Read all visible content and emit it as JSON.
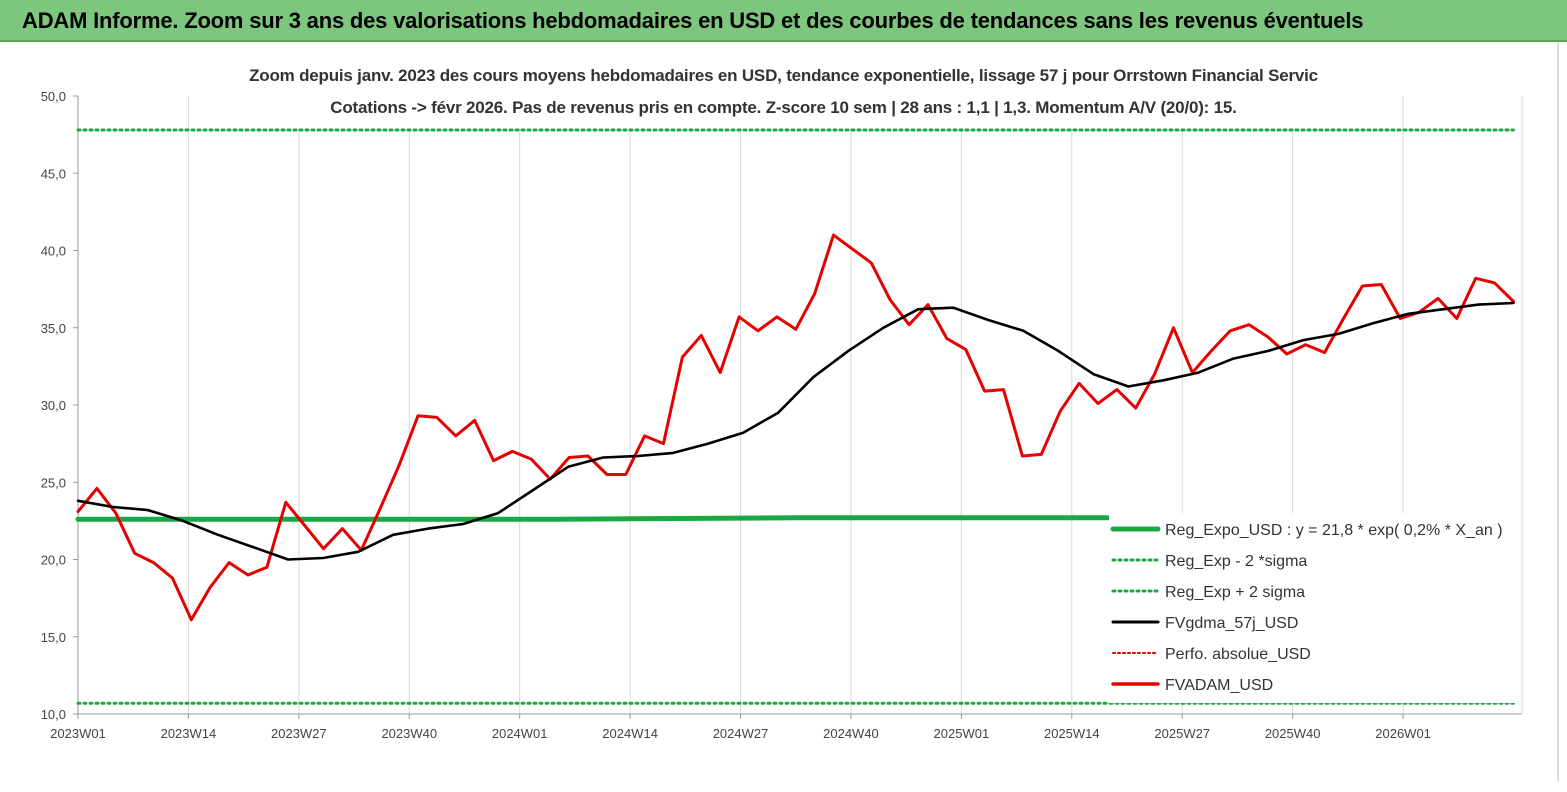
{
  "header": {
    "title": "ADAM Informe. Zoom sur 3 ans des valorisations hebdomadaires en USD et des courbes de tendances sans les revenus éventuels"
  },
  "colors": {
    "header_bg": "#7dc67d",
    "reg_expo": "#1aa844",
    "sigma_bands": "#1aa844",
    "fvgdma": "#000000",
    "perfo": "#e00000",
    "fvadam": "#e60000",
    "grid": "#d9d9d9"
  },
  "chart_data": {
    "type": "line",
    "title_line1": "Zoom depuis janv. 2023 des cours moyens hebdomadaires en USD, tendance exponentielle, lissage 57 j pour Orrstown Financial Servic",
    "title_line2": "Cotations -> févr 2026.  Pas de revenus pris en compte. Z-score 10 sem  | 28 ans : 1,1  | 1,3. Momentum A/V (20/0): 15.",
    "xlabel": "",
    "ylabel": "",
    "ylim": [
      10,
      50
    ],
    "yticks": [
      "10,0",
      "15,0",
      "20,0",
      "25,0",
      "30,0",
      "35,0",
      "40,0",
      "45,0",
      "50,0"
    ],
    "xticks": [
      "2023W01",
      "2023W14",
      "2023W27",
      "2023W40",
      "2024W01",
      "2024W14",
      "2024W27",
      "2024W40",
      "2025W01",
      "2025W14",
      "2025W27",
      "2025W40",
      "2026W01"
    ],
    "grid": "vertical",
    "legend_position": "bottom-right",
    "n_weeks": 170,
    "series": [
      {
        "name": "Reg_Expo_USD : y = 21,8 * exp( 0,2% *  X_an )",
        "style": "solid-thick",
        "values": [
          22.6,
          22.6,
          22.6,
          22.7,
          22.7,
          22.7,
          22.8
        ]
      },
      {
        "name": "Reg_Exp - 2 *sigma",
        "style": "dotted",
        "values": [
          10.7,
          10.7,
          10.7,
          10.7,
          10.7,
          10.7,
          10.7
        ]
      },
      {
        "name": "Reg_Exp + 2 sigma",
        "style": "dotted",
        "values": [
          47.8,
          47.8,
          47.8,
          47.8,
          47.8,
          47.8,
          47.8
        ]
      },
      {
        "name": "FVgdma_57j_USD",
        "style": "solid",
        "values": [
          23.8,
          23.4,
          23.2,
          22.5,
          21.6,
          20.8,
          20.0,
          20.1,
          20.5,
          21.6,
          22.0,
          22.3,
          23.0,
          24.5,
          26.0,
          26.6,
          26.7,
          26.9,
          27.5,
          28.2,
          29.5,
          31.8,
          33.5,
          35.0,
          36.2,
          36.3,
          35.5,
          34.8,
          33.5,
          32.0,
          31.2,
          31.6,
          32.1,
          33.0,
          33.5,
          34.2,
          34.6,
          35.3,
          35.9,
          36.2,
          36.5,
          36.6
        ]
      },
      {
        "name": "Perfo. absolue_USD",
        "style": "dotted",
        "values": []
      },
      {
        "name": "FVADAM_USD",
        "style": "solid",
        "values": [
          23.1,
          24.6,
          23.0,
          20.4,
          19.8,
          18.8,
          16.1,
          18.2,
          19.8,
          19.0,
          19.5,
          23.7,
          22.2,
          20.7,
          22.0,
          20.6,
          23.3,
          26.1,
          29.3,
          29.2,
          28.0,
          29.0,
          26.4,
          27.0,
          26.5,
          25.2,
          26.6,
          26.7,
          25.5,
          25.5,
          28.0,
          27.5,
          33.1,
          34.5,
          32.1,
          35.7,
          34.8,
          35.7,
          34.9,
          37.2,
          41.0,
          40.1,
          39.2,
          36.8,
          35.2,
          36.5,
          34.3,
          33.6,
          30.9,
          31.0,
          26.7,
          26.8,
          29.6,
          31.4,
          30.1,
          31.0,
          29.8,
          32.0,
          35.0,
          32.1,
          33.5,
          34.8,
          35.2,
          34.4,
          33.3,
          33.9,
          33.4,
          35.6,
          37.7,
          37.8,
          35.6,
          36.0,
          36.9,
          35.6,
          38.2,
          37.9,
          36.7
        ]
      }
    ]
  }
}
